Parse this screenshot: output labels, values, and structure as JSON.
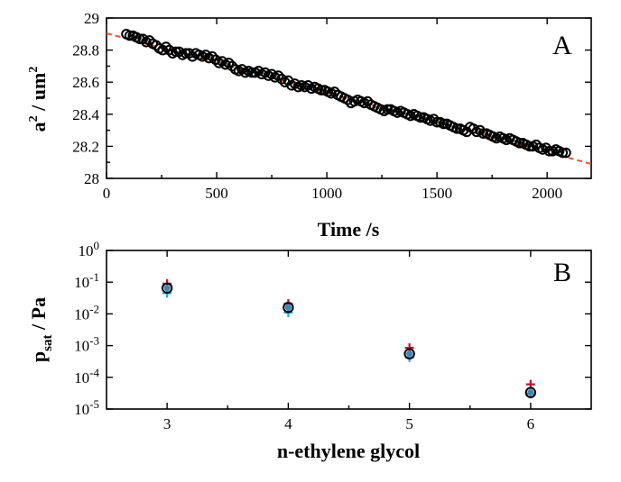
{
  "chart_data": [
    {
      "panel": "A",
      "type": "scatter",
      "panel_label": "A",
      "xlabel": "Time /s",
      "ylabel_main": "a",
      "ylabel_sup1": "2",
      "ylabel_mid": " / um",
      "ylabel_sup2": "2",
      "xlim": [
        0,
        2200
      ],
      "ylim": [
        28.0,
        29.0
      ],
      "xticks": [
        0,
        500,
        1000,
        1500,
        2000
      ],
      "xtick_labels": [
        "0",
        "500",
        "1000",
        "1500",
        "2000"
      ],
      "yticks": [
        28.0,
        28.2,
        28.4,
        28.6,
        28.8,
        29.0
      ],
      "ytick_labels": [
        "28",
        "28.2",
        "28.4",
        "28.6",
        "28.8",
        "29"
      ],
      "grid": false,
      "marker": "open-circle",
      "marker_color": "#000000",
      "fit_line": {
        "style": "dashed",
        "color": "#e8582a",
        "x": [
          0,
          2200
        ],
        "y": [
          28.905,
          28.09
        ]
      },
      "series": [
        {
          "x": [
            90,
            105,
            120,
            135,
            150,
            165,
            180,
            195,
            210,
            225,
            240,
            255,
            270,
            285,
            300,
            315,
            330,
            345,
            360,
            375,
            390,
            405,
            420,
            435,
            450,
            465,
            480,
            495,
            510,
            525,
            540,
            555,
            570,
            585,
            600,
            615,
            630,
            645,
            660,
            675,
            690,
            705,
            720,
            735,
            750,
            765,
            780,
            795,
            810,
            825,
            840,
            855,
            870,
            885,
            900,
            915,
            930,
            945,
            960,
            975,
            990,
            1005,
            1020,
            1035,
            1050,
            1065,
            1080,
            1095,
            1110,
            1125,
            1140,
            1155,
            1170,
            1185,
            1200,
            1215,
            1230,
            1245,
            1260,
            1275,
            1290,
            1305,
            1320,
            1335,
            1350,
            1365,
            1380,
            1395,
            1410,
            1425,
            1440,
            1455,
            1470,
            1485,
            1500,
            1515,
            1530,
            1545,
            1560,
            1575,
            1590,
            1605,
            1620,
            1635,
            1650,
            1665,
            1680,
            1695,
            1710,
            1725,
            1740,
            1755,
            1770,
            1785,
            1800,
            1815,
            1830,
            1845,
            1860,
            1875,
            1890,
            1905,
            1920,
            1935,
            1950,
            1965,
            1980,
            1995,
            2010,
            2025,
            2040,
            2055,
            2070,
            2085
          ],
          "y": [
            28.9,
            28.89,
            28.89,
            28.88,
            28.87,
            28.87,
            28.85,
            28.86,
            28.84,
            28.83,
            28.81,
            28.8,
            28.82,
            28.8,
            28.78,
            28.79,
            28.79,
            28.77,
            28.78,
            28.78,
            28.76,
            28.78,
            28.77,
            28.76,
            28.77,
            28.75,
            28.76,
            28.74,
            28.72,
            28.73,
            28.71,
            28.72,
            28.7,
            28.68,
            28.67,
            28.68,
            28.66,
            28.67,
            28.66,
            28.66,
            28.67,
            28.65,
            28.66,
            28.64,
            28.65,
            28.63,
            28.64,
            28.62,
            28.6,
            28.61,
            28.58,
            28.59,
            28.57,
            28.58,
            28.57,
            28.58,
            28.56,
            28.57,
            28.56,
            28.55,
            28.55,
            28.54,
            28.53,
            28.54,
            28.52,
            28.51,
            28.5,
            28.49,
            28.47,
            28.48,
            28.49,
            28.48,
            28.47,
            28.48,
            28.46,
            28.45,
            28.44,
            28.43,
            28.42,
            28.43,
            28.43,
            28.42,
            28.41,
            28.42,
            28.41,
            28.4,
            28.39,
            28.4,
            28.39,
            28.38,
            28.38,
            28.37,
            28.36,
            28.37,
            28.35,
            28.35,
            28.34,
            28.34,
            28.33,
            28.32,
            28.31,
            28.31,
            28.3,
            28.29,
            28.32,
            28.31,
            28.29,
            28.3,
            28.28,
            28.28,
            28.27,
            28.26,
            28.25,
            28.26,
            28.25,
            28.24,
            28.25,
            28.24,
            28.23,
            28.22,
            28.22,
            28.21,
            28.2,
            28.2,
            28.21,
            28.19,
            28.18,
            28.19,
            28.17,
            28.17,
            28.18,
            28.17,
            28.16,
            28.16
          ]
        }
      ]
    },
    {
      "panel": "B",
      "type": "scatter",
      "panel_label": "B",
      "xlabel": "n-ethylene glycol",
      "ylabel_main": "p",
      "ylabel_sub": "sat",
      "ylabel_rest": " / Pa",
      "yscale": "log",
      "xlim": [
        2.5,
        6.5
      ],
      "ylim": [
        1e-05,
        1.0
      ],
      "xticks": [
        3,
        4,
        5,
        6
      ],
      "xtick_labels": [
        "3",
        "4",
        "5",
        "6"
      ],
      "yticks": [
        -5,
        -4,
        -3,
        -2,
        -1,
        0
      ],
      "ytick_labels": [
        {
          "base": "10",
          "exp": "-5"
        },
        {
          "base": "10",
          "exp": "-4"
        },
        {
          "base": "10",
          "exp": "-3"
        },
        {
          "base": "10",
          "exp": "-2"
        },
        {
          "base": "10",
          "exp": "-1"
        },
        {
          "base": "10",
          "exp": "0"
        }
      ],
      "grid": false,
      "series": [
        {
          "marker": "cross",
          "color": "#2aa6e0",
          "x": [
            3,
            4,
            5,
            6
          ],
          "y": [
            0.045,
            0.011,
            0.00042,
            3e-05
          ]
        },
        {
          "marker": "cross",
          "color": "#c8102e",
          "x": [
            3,
            4,
            5,
            6
          ],
          "y": [
            0.09,
            0.021,
            0.00085,
            6e-05
          ]
        },
        {
          "marker": "open-circle",
          "color": "#000000",
          "x": [
            3,
            4,
            5,
            6
          ],
          "y": [
            0.065,
            0.016,
            0.00055,
            3.3e-05
          ]
        },
        {
          "marker": "filled-circle",
          "color": "#3d87b8",
          "x": [
            3,
            4,
            5,
            6
          ],
          "y": [
            0.065,
            0.016,
            0.00055,
            3.3e-05
          ]
        }
      ]
    }
  ]
}
